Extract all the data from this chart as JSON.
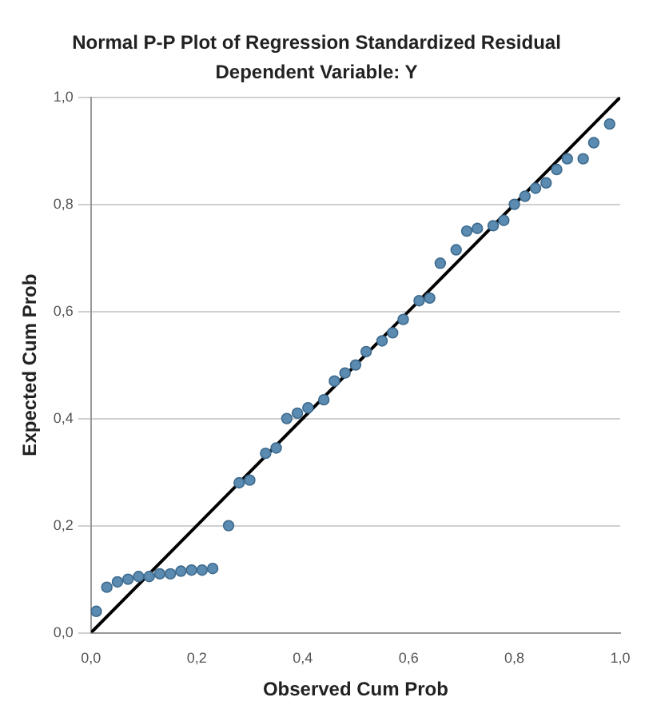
{
  "chart_data": {
    "type": "scatter",
    "title": "Normal P-P Plot of Regression Standardized Residual",
    "subtitle": "Dependent Variable: Y",
    "xlabel": "Observed Cum Prob",
    "ylabel": "Expected Cum Prob",
    "xlim": [
      0,
      1
    ],
    "ylim": [
      0,
      1
    ],
    "xticks": [
      {
        "value": 0,
        "label": "0,0"
      },
      {
        "value": 0.2,
        "label": "0,2"
      },
      {
        "value": 0.4,
        "label": "0,4"
      },
      {
        "value": 0.6,
        "label": "0,6"
      },
      {
        "value": 0.8,
        "label": "0,8"
      },
      {
        "value": 1,
        "label": "1,0"
      }
    ],
    "yticks": [
      {
        "value": 0,
        "label": "0,0"
      },
      {
        "value": 0.2,
        "label": "0,2"
      },
      {
        "value": 0.4,
        "label": "0,4"
      },
      {
        "value": 0.6,
        "label": "0,6"
      },
      {
        "value": 0.8,
        "label": "0,8"
      },
      {
        "value": 1,
        "label": "1,0"
      }
    ],
    "grid": "y",
    "legend": false,
    "series": [
      {
        "type": "scatter",
        "marker": "circle",
        "color": "#5b8bb0",
        "x": [
          0.01,
          0.03,
          0.05,
          0.07,
          0.09,
          0.11,
          0.13,
          0.15,
          0.17,
          0.19,
          0.21,
          0.23,
          0.26,
          0.28,
          0.3,
          0.33,
          0.35,
          0.37,
          0.39,
          0.41,
          0.44,
          0.46,
          0.48,
          0.5,
          0.52,
          0.55,
          0.57,
          0.59,
          0.62,
          0.64,
          0.66,
          0.69,
          0.71,
          0.73,
          0.76,
          0.78,
          0.8,
          0.82,
          0.84,
          0.86,
          0.88,
          0.9,
          0.93,
          0.95,
          0.98
        ],
        "values": [
          0.04,
          0.085,
          0.095,
          0.1,
          0.105,
          0.105,
          0.11,
          0.11,
          0.115,
          0.117,
          0.117,
          0.12,
          0.2,
          0.28,
          0.285,
          0.335,
          0.345,
          0.4,
          0.41,
          0.42,
          0.435,
          0.47,
          0.485,
          0.5,
          0.525,
          0.545,
          0.56,
          0.585,
          0.62,
          0.625,
          0.69,
          0.715,
          0.75,
          0.755,
          0.76,
          0.77,
          0.8,
          0.815,
          0.83,
          0.84,
          0.865,
          0.885,
          0.885,
          0.915,
          0.95
        ]
      },
      {
        "type": "line",
        "marker": "none",
        "color": "#000000",
        "x": [
          0,
          1
        ],
        "values": [
          0,
          1
        ]
      }
    ]
  }
}
